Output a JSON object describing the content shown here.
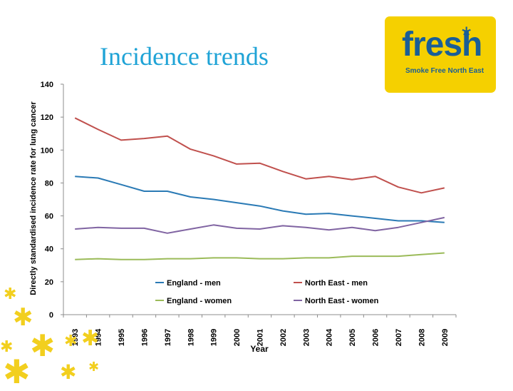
{
  "slide": {
    "title": "Incidence trends"
  },
  "logo": {
    "word": "fresh",
    "tagline": "Smoke Free North East",
    "star": "*"
  },
  "colors": {
    "title": "#1fa3d6",
    "logo_bg": "#f5d000",
    "logo_text": "#1a5e96",
    "stars": "#f2cf1e"
  },
  "chart_data": {
    "type": "line",
    "xlabel": "Year",
    "ylabel": "Directly standardised incidence rate for lung cancer",
    "ylim": [
      0,
      140
    ],
    "yticks": [
      0,
      20,
      40,
      60,
      80,
      100,
      120,
      140
    ],
    "x": [
      "1993",
      "1994",
      "1995",
      "1996",
      "1997",
      "1998",
      "1999",
      "2000",
      "2001",
      "2002",
      "2003",
      "2004",
      "2005",
      "2006",
      "2007",
      "2008",
      "2009"
    ],
    "grid": false,
    "legend_position": "lower-center",
    "series": [
      {
        "name": "England - men",
        "color": "#2a7ab5",
        "values": [
          84,
          83,
          79,
          75,
          75,
          71.5,
          70,
          68,
          66,
          63,
          61,
          61.5,
          60,
          58.5,
          57,
          57,
          56
        ]
      },
      {
        "name": "North East - men",
        "color": "#c0504d",
        "values": [
          119.5,
          112.5,
          106,
          107,
          108.5,
          100.5,
          96.5,
          91.5,
          92,
          87,
          82.5,
          84,
          82,
          84,
          77.5,
          74,
          77
        ]
      },
      {
        "name": "England - women",
        "color": "#9bbb59",
        "values": [
          33.5,
          34,
          33.5,
          33.5,
          34,
          34,
          34.5,
          34.5,
          34,
          34,
          34.5,
          34.5,
          35.5,
          35.5,
          35.5,
          36.5,
          37.5
        ]
      },
      {
        "name": "North East - women",
        "color": "#8064a2",
        "values": [
          52,
          53,
          52.5,
          52.5,
          49.5,
          52,
          54.5,
          52.5,
          52,
          54,
          53,
          51.5,
          53,
          51,
          53,
          56,
          59
        ]
      }
    ]
  }
}
